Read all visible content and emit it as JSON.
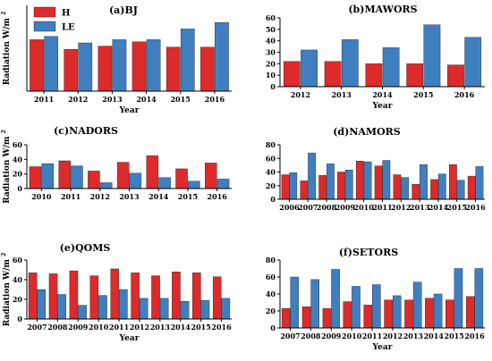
{
  "colors": {
    "H": "#dd2a2a",
    "LE": "#3f7fbf"
  },
  "chart_data": [
    {
      "type": "bar",
      "title": "(a)BJ",
      "categories": [
        "2011",
        "2012",
        "2013",
        "2014",
        "2015",
        "2016"
      ],
      "series": [
        {
          "name": "H",
          "values": [
            48,
            39,
            42,
            46,
            41,
            41
          ]
        },
        {
          "name": "LE",
          "values": [
            51,
            45,
            48,
            48,
            58,
            64
          ]
        }
      ],
      "xlabel": "Year",
      "ylabel": "Radiation W/m",
      "ylabel_sup": "2",
      "ylim": [
        0,
        80
      ],
      "yticks": [],
      "legend": "top-left",
      "grid": false
    },
    {
      "type": "bar",
      "title": "(b)MAWORS",
      "categories": [
        "2012",
        "2013",
        "2014",
        "2015",
        "2016"
      ],
      "series": [
        {
          "name": "H",
          "values": [
            22,
            22,
            20,
            20,
            19
          ]
        },
        {
          "name": "LE",
          "values": [
            32,
            41,
            34,
            54,
            43
          ]
        }
      ],
      "xlabel": "Year",
      "ylabel": "",
      "ylabel_sup": "",
      "ylim": [
        0,
        60
      ],
      "yticks": [
        0,
        10,
        20,
        30,
        40,
        50,
        60
      ],
      "legend": "none",
      "grid": false
    },
    {
      "type": "bar",
      "title": "(c)NADORS",
      "categories": [
        "2010",
        "2011",
        "2012",
        "2013",
        "2014",
        "2015",
        "2016"
      ],
      "series": [
        {
          "name": "H",
          "values": [
            30,
            38,
            24,
            36,
            45,
            27,
            35
          ]
        },
        {
          "name": "LE",
          "values": [
            34,
            31,
            8,
            21,
            15,
            10,
            13
          ]
        }
      ],
      "xlabel": "",
      "ylabel": "Radiation W/m",
      "ylabel_sup": "2",
      "ylim": [
        0,
        60
      ],
      "yticks": [
        0,
        20,
        40,
        60
      ],
      "legend": "none",
      "grid": false
    },
    {
      "type": "bar",
      "title": "(d)NAMORS",
      "categories": [
        "2006",
        "2007",
        "2008",
        "2009",
        "2010",
        "2011",
        "2012",
        "2013",
        "2014",
        "2015",
        "2016"
      ],
      "series": [
        {
          "name": "H",
          "values": [
            36,
            27,
            35,
            40,
            56,
            49,
            36,
            22,
            29,
            51,
            34
          ]
        },
        {
          "name": "LE",
          "values": [
            39,
            68,
            52,
            43,
            55,
            57,
            32,
            51,
            37,
            28,
            48
          ]
        }
      ],
      "xlabel": "",
      "ylabel": "",
      "ylabel_sup": "",
      "ylim": [
        0,
        80
      ],
      "yticks": [
        0,
        20,
        40,
        60,
        80
      ],
      "legend": "none",
      "grid": false
    },
    {
      "type": "bar",
      "title": "(e)QOMS",
      "categories": [
        "2007",
        "2008",
        "2009",
        "2010",
        "2011",
        "2012",
        "2013",
        "2014",
        "2015",
        "2016"
      ],
      "series": [
        {
          "name": "H",
          "values": [
            47,
            46,
            49,
            44,
            51,
            47,
            44,
            48,
            47,
            43
          ]
        },
        {
          "name": "LE",
          "values": [
            30,
            25,
            14,
            24,
            30,
            21,
            21,
            18,
            19,
            21
          ]
        }
      ],
      "xlabel": "Year",
      "ylabel": "Radiation W/m",
      "ylabel_sup": "2",
      "ylim": [
        0,
        60
      ],
      "yticks": [
        0,
        20,
        40,
        60
      ],
      "legend": "none",
      "grid": false
    },
    {
      "type": "bar",
      "title": "(f)SETORS",
      "categories": [
        "2007",
        "2008",
        "2009",
        "2010",
        "2011",
        "2012",
        "2013",
        "2014",
        "2015",
        "2016"
      ],
      "series": [
        {
          "name": "H",
          "values": [
            23,
            25,
            23,
            31,
            27,
            33,
            33,
            35,
            33,
            37
          ]
        },
        {
          "name": "LE",
          "values": [
            60,
            57,
            69,
            49,
            51,
            38,
            54,
            40,
            70,
            70
          ]
        }
      ],
      "xlabel": "Year",
      "ylabel": "",
      "ylabel_sup": "",
      "ylim": [
        0,
        80
      ],
      "yticks": [
        0,
        20,
        40,
        60,
        80
      ],
      "legend": "none",
      "grid": false
    }
  ]
}
